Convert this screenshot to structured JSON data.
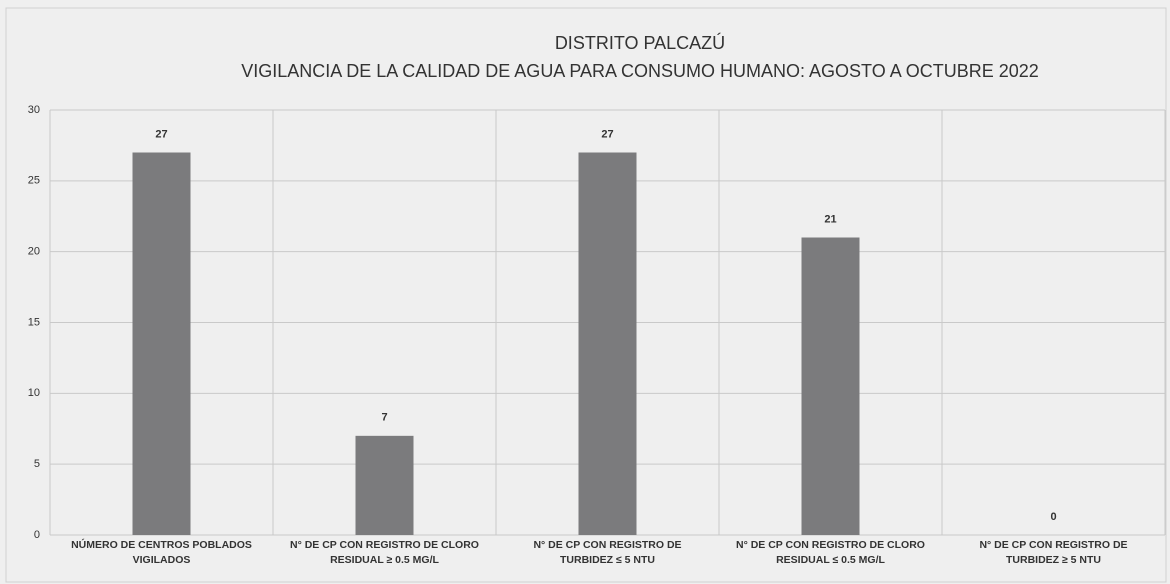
{
  "chart_data": {
    "type": "bar",
    "title": "DISTRITO PALCAZÚ",
    "subtitle": "VIGILANCIA DE LA CALIDAD DE AGUA PARA CONSUMO HUMANO: AGOSTO A OCTUBRE 2022",
    "categories": [
      "NÚMERO DE CENTROS POBLADOS VIGILADOS",
      "N° DE CP CON REGISTRO DE CLORO RESIDUAL ≥ 0.5 MG/L",
      "N° DE CP CON REGISTRO DE TURBIDEZ ≤ 5 NTU",
      "N° DE CP CON REGISTRO DE CLORO RESIDUAL ≤ 0.5 MG/L",
      "N° DE CP CON REGISTRO DE TURBIDEZ ≥ 5 NTU"
    ],
    "values": [
      27,
      7,
      27,
      21,
      0
    ],
    "color": "#7b7b7d",
    "ylim": [
      0,
      30
    ],
    "yticks": [
      0,
      5,
      10,
      15,
      20,
      25,
      30
    ],
    "grid": true
  }
}
